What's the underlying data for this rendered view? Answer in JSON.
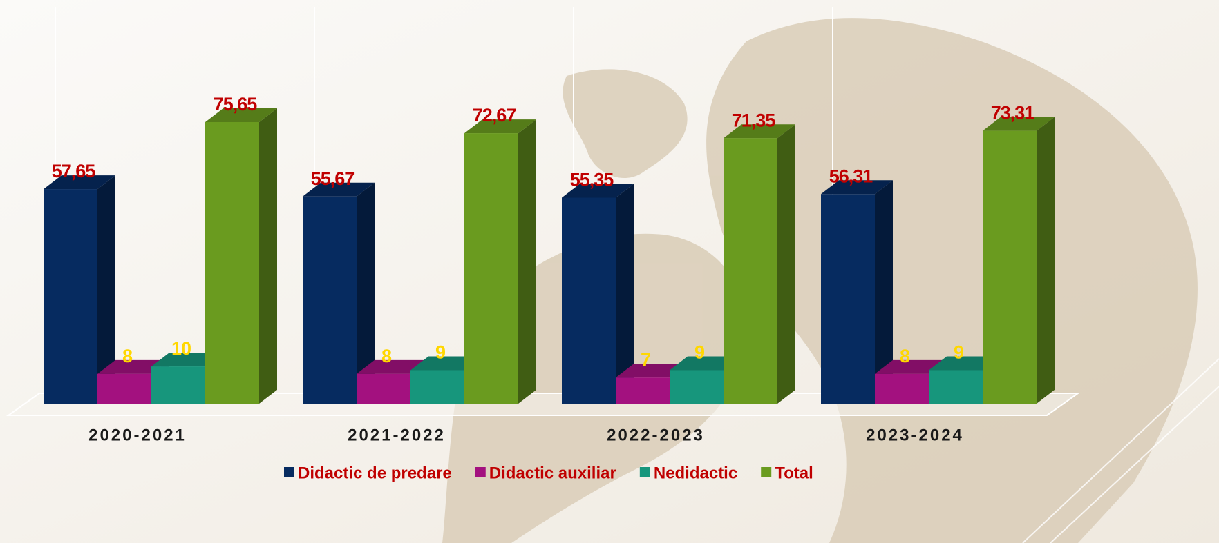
{
  "chart_data": {
    "type": "bar3d",
    "categories": [
      "2020-2021",
      "2021-2022",
      "2022-2023",
      "2023-2024"
    ],
    "series": [
      {
        "name": "Didactic de predare",
        "color": "#062b60",
        "label_color": "#c00000",
        "values": [
          57.65,
          55.67,
          55.35,
          56.31
        ],
        "value_labels": [
          "57,65",
          "55,67",
          "55,35",
          "56,31"
        ]
      },
      {
        "name": "Didactic auxiliar",
        "color": "#a3117f",
        "label_color": "#ffd700",
        "values": [
          8,
          8,
          7,
          8
        ]
      },
      {
        "name": "Nedidactic",
        "color": "#17967c",
        "label_color": "#ffd700",
        "values": [
          10,
          9,
          9,
          9
        ]
      },
      {
        "name": "Total",
        "color": "#6a9b1f",
        "label_color": "#c00000",
        "values": [
          75.65,
          72.67,
          71.35,
          73.31
        ],
        "value_labels": [
          "75,65",
          "72,67",
          "71,35",
          "73,31"
        ]
      }
    ],
    "legend_text_color": "#c00000"
  }
}
